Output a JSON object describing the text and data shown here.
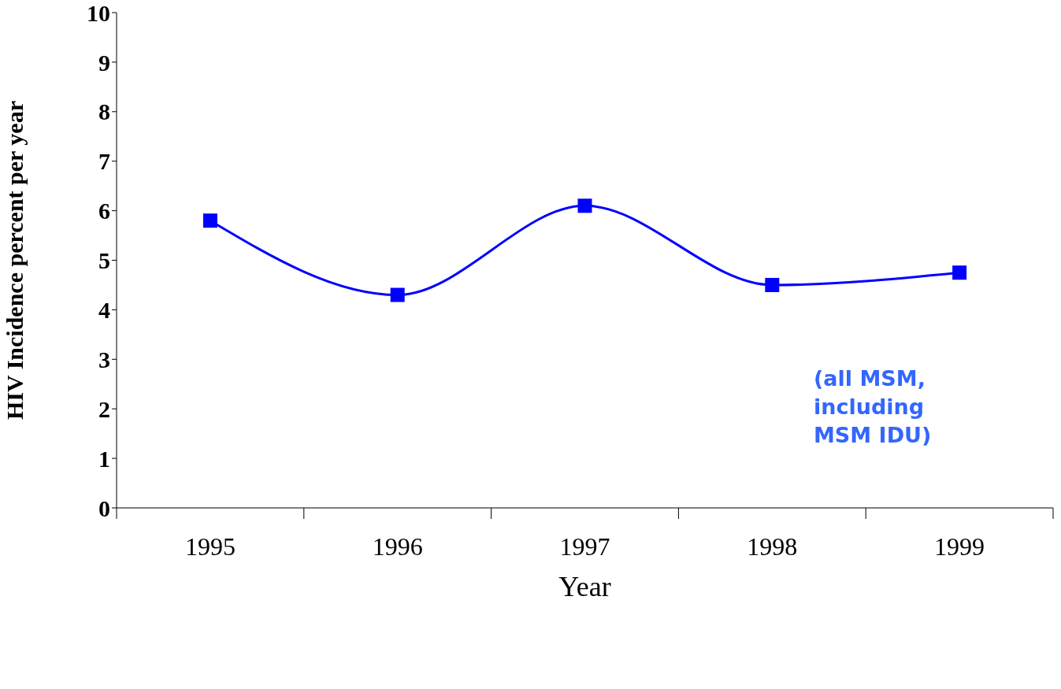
{
  "chart_data": {
    "type": "line",
    "xlabel": "Year",
    "ylabel": "HIV Incidence percent per year",
    "categories": [
      "1995",
      "1996",
      "1997",
      "1998",
      "1999"
    ],
    "series": [
      {
        "color": "#0000ff",
        "values": [
          5.8,
          4.3,
          6.1,
          4.5,
          4.75
        ]
      }
    ],
    "ylim": [
      0,
      10
    ],
    "yticks": [
      0,
      1,
      2,
      3,
      4,
      5,
      6,
      7,
      8,
      9,
      10
    ],
    "marker": "square",
    "line_style": "solid",
    "annotations": [
      "(all MSM, including MSM IDU)"
    ]
  }
}
